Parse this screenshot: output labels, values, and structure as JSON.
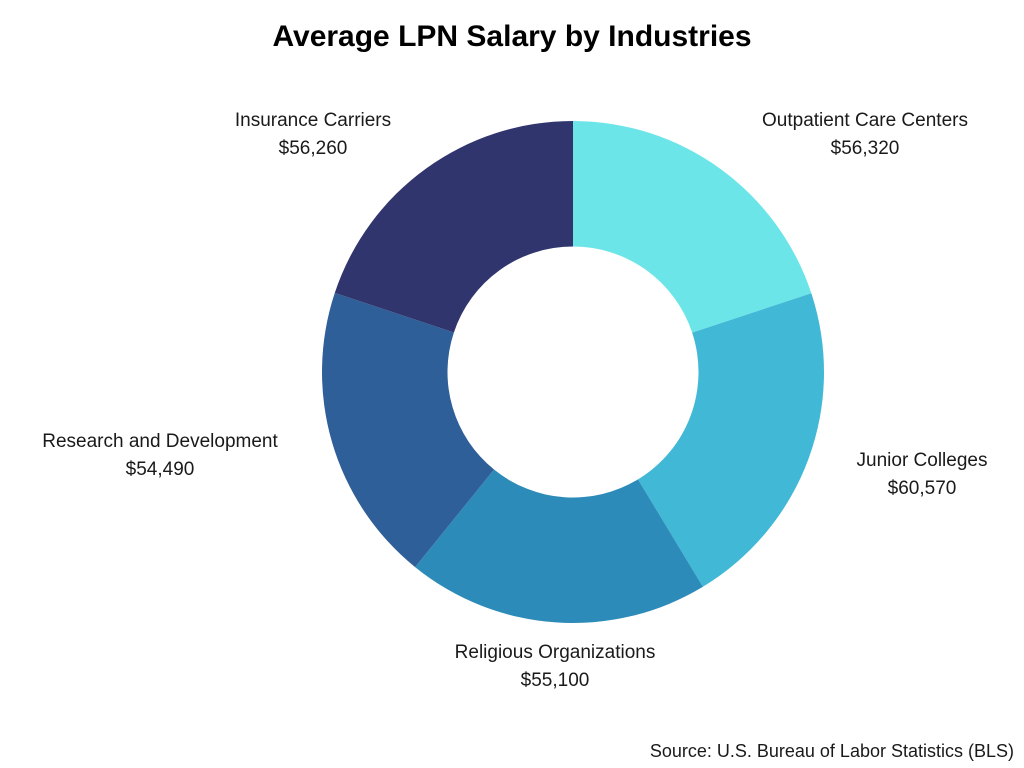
{
  "title": "Average LPN Salary by Industries",
  "source": "Source: U.S. Bureau of Labor Statistics (BLS)",
  "chart_data": {
    "type": "pie",
    "subtype": "donut",
    "title": "Average LPN Salary by Industries",
    "start_angle_deg": 0,
    "direction": "clockwise",
    "inner_radius_ratio": 0.5,
    "legend_position": "labels-around-chart",
    "background_color": "#ffffff",
    "segments": [
      {
        "id": "outpatient-care-centers",
        "label": "Outpatient Care Centers",
        "value": 56320,
        "value_display": "$56,320",
        "color": "#6CE5E8"
      },
      {
        "id": "junior-colleges",
        "label": "Junior Colleges",
        "value": 60570,
        "value_display": "$60,570",
        "color": "#41B8D5"
      },
      {
        "id": "religious-organizations",
        "label": "Religious Organizations",
        "value": 55100,
        "value_display": "$55,100",
        "color": "#2D8BBA"
      },
      {
        "id": "research-and-development",
        "label": "Research and Development",
        "value": 54490,
        "value_display": "$54,490",
        "color": "#2F5F98"
      },
      {
        "id": "insurance-carriers",
        "label": "Insurance Carriers",
        "value": 56260,
        "value_display": "$56,260",
        "color": "#31356E"
      }
    ]
  }
}
